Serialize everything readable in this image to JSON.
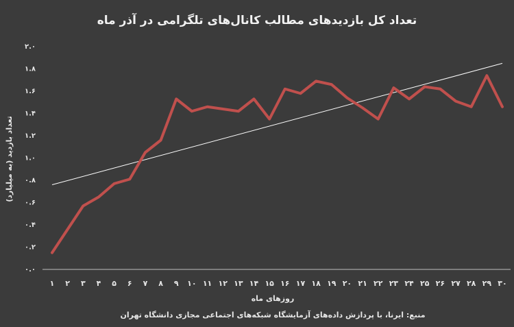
{
  "chart_data": {
    "type": "line",
    "title": "تعداد کل بازدیدهای مطالب کانال‌های تلگرامی در آذر ماه",
    "x_label": "روزهای ماه",
    "y_label": "تعداد بازدید (به میلیارد)",
    "source": "منبع: ایرنا، با پردازش داده‌های آزمایشگاه شبکه‌های اجتماعی مجازی دانشگاه تهران",
    "categories": [
      "۱",
      "۲",
      "۳",
      "۴",
      "۵",
      "۶",
      "۷",
      "۸",
      "۹",
      "۱۰",
      "۱۱",
      "۱۲",
      "۱۳",
      "۱۴",
      "۱۵",
      "۱۶",
      "۱۷",
      "۱۸",
      "۱۹",
      "۲۰",
      "۲۱",
      "۲۲",
      "۲۳",
      "۲۴",
      "۲۵",
      "۲۶",
      "۲۷",
      "۲۸",
      "۲۹",
      "۳۰"
    ],
    "values": [
      0.15,
      0.36,
      0.57,
      0.65,
      0.77,
      0.81,
      1.05,
      1.16,
      1.53,
      1.42,
      1.46,
      1.44,
      1.42,
      1.53,
      1.35,
      1.62,
      1.58,
      1.69,
      1.66,
      1.54,
      1.45,
      1.35,
      1.63,
      1.53,
      1.64,
      1.62,
      1.51,
      1.46,
      1.74,
      1.46
    ],
    "color": "#c0504d",
    "trendline": {
      "values": [
        0.76,
        1.85
      ],
      "color": "#ffffff"
    },
    "ylim": [
      0,
      2
    ],
    "yticks": [
      {
        "value": 0,
        "label": "۰.۰"
      },
      {
        "value": 0.2,
        "label": "۰.۲"
      },
      {
        "value": 0.4,
        "label": "۰.۴"
      },
      {
        "value": 0.6,
        "label": "۰.۶"
      },
      {
        "value": 0.8,
        "label": "۰.۸"
      },
      {
        "value": 1.0,
        "label": "۱.۰"
      },
      {
        "value": 1.2,
        "label": "۱.۲"
      },
      {
        "value": 1.4,
        "label": "۱.۴"
      },
      {
        "value": 1.6,
        "label": "۱.۶"
      },
      {
        "value": 1.8,
        "label": "۱.۸"
      },
      {
        "value": 2.0,
        "label": "۲.۰"
      }
    ],
    "grid": false
  }
}
